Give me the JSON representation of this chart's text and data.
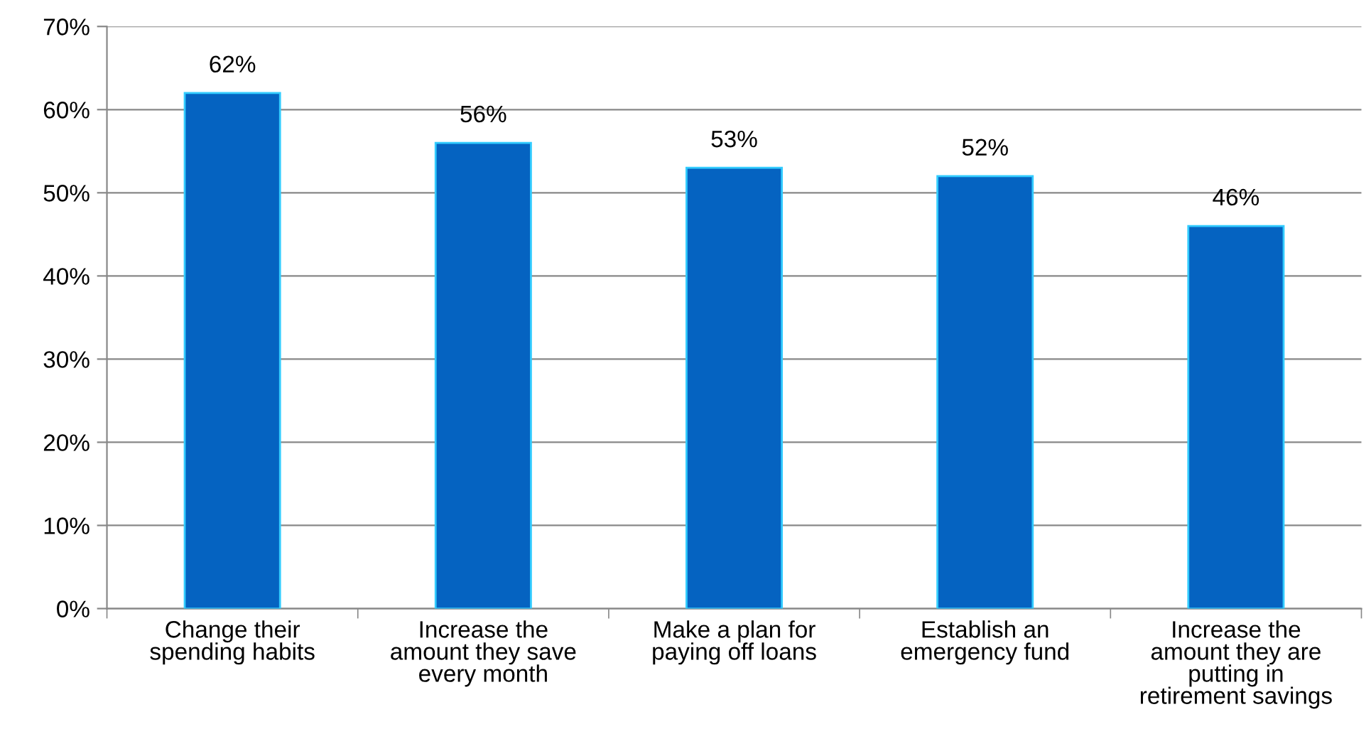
{
  "chart_data": {
    "type": "bar",
    "categories": [
      "Change their\nspending habits",
      "Increase the\namount they save\nevery month",
      "Make a plan for\npaying off loans",
      "Establish an\nemergency fund",
      "Increase the\namount they are\nputting in\nretirement savings"
    ],
    "values": [
      62,
      56,
      53,
      52,
      46
    ],
    "value_labels": [
      "62%",
      "56%",
      "53%",
      "52%",
      "46%"
    ],
    "color": "#0563c1",
    "ylim": [
      0,
      70
    ],
    "yticks": [
      {
        "value": 0,
        "label": "0%"
      },
      {
        "value": 10,
        "label": "10%"
      },
      {
        "value": 20,
        "label": "20%"
      },
      {
        "value": 30,
        "label": "30%"
      },
      {
        "value": 40,
        "label": "40%"
      },
      {
        "value": 50,
        "label": "50%"
      },
      {
        "value": 60,
        "label": "60%"
      },
      {
        "value": 70,
        "label": "70%"
      }
    ],
    "grid": "y"
  }
}
